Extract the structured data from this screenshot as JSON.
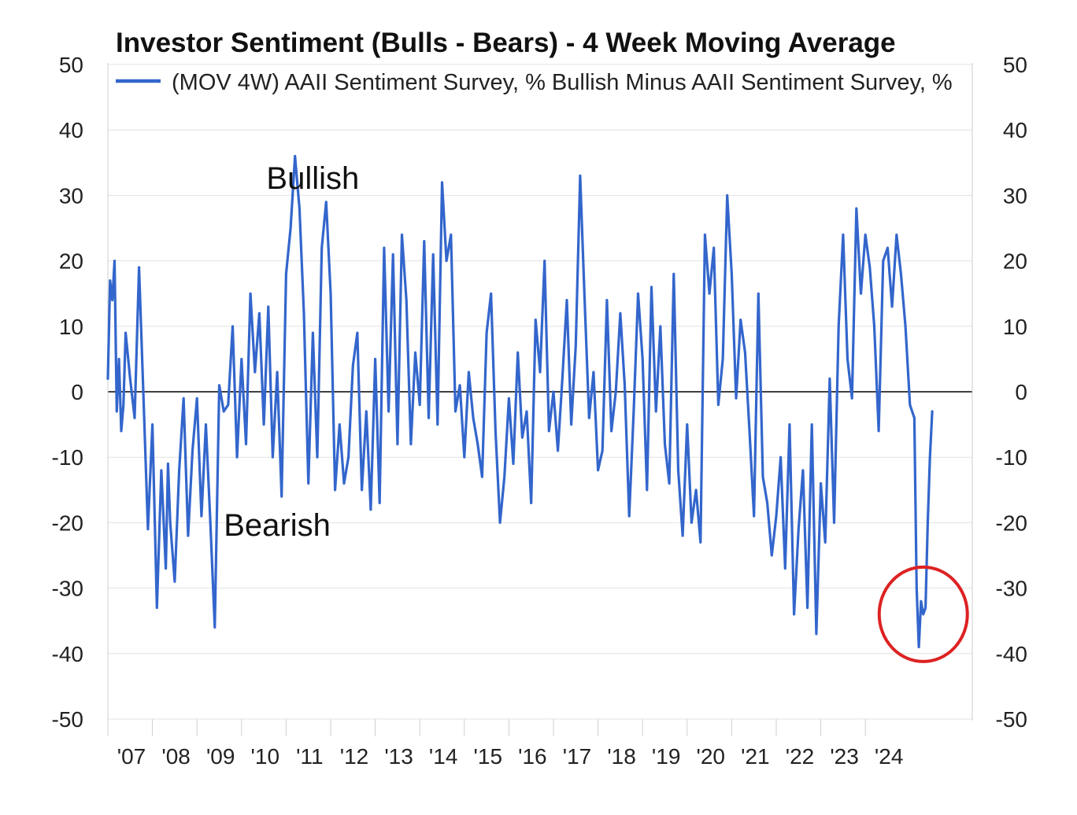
{
  "chart_data": {
    "type": "line",
    "title": "Investor Sentiment (Bulls - Bears) - 4 Week Moving Average",
    "legend": "(MOV 4W) AAII Sentiment Survey, % Bullish Minus AAII Sentiment Survey, %",
    "series_color": "#3366cc",
    "highlight_color": "#dd2222",
    "ylim": [
      -50,
      50
    ],
    "yticks": [
      50,
      40,
      30,
      20,
      10,
      0,
      -10,
      -20,
      -30,
      -40,
      -50
    ],
    "x_range": [
      2007.0,
      2026.4
    ],
    "xticks": [
      {
        "label": "'07",
        "value": 2007
      },
      {
        "label": "'08",
        "value": 2008
      },
      {
        "label": "'09",
        "value": 2009
      },
      {
        "label": "'10",
        "value": 2010
      },
      {
        "label": "'11",
        "value": 2011
      },
      {
        "label": "'12",
        "value": 2012
      },
      {
        "label": "'13",
        "value": 2013
      },
      {
        "label": "'14",
        "value": 2014
      },
      {
        "label": "'15",
        "value": 2015
      },
      {
        "label": "'16",
        "value": 2016
      },
      {
        "label": "'17",
        "value": 2017
      },
      {
        "label": "'18",
        "value": 2018
      },
      {
        "label": "'19",
        "value": 2019
      },
      {
        "label": "'20",
        "value": 2020
      },
      {
        "label": "'21",
        "value": 2021
      },
      {
        "label": "'22",
        "value": 2022
      },
      {
        "label": "'23",
        "value": 2023
      },
      {
        "label": "'24",
        "value": 2024
      }
    ],
    "annotations": [
      {
        "text": "Bullish",
        "x": 2011.6,
        "y": 31
      },
      {
        "text": "Bearish",
        "x": 2010.8,
        "y": -22
      }
    ],
    "highlight": {
      "x": 2025.3,
      "y": -34
    },
    "x": [
      2007.0,
      2007.05,
      2007.1,
      2007.15,
      2007.2,
      2007.25,
      2007.3,
      2007.35,
      2007.4,
      2007.5,
      2007.6,
      2007.7,
      2007.8,
      2007.9,
      2008.0,
      2008.1,
      2008.2,
      2008.3,
      2008.35,
      2008.4,
      2008.5,
      2008.6,
      2008.7,
      2008.8,
      2008.9,
      2009.0,
      2009.1,
      2009.2,
      2009.3,
      2009.4,
      2009.5,
      2009.6,
      2009.7,
      2009.8,
      2009.9,
      2010.0,
      2010.1,
      2010.2,
      2010.3,
      2010.4,
      2010.5,
      2010.6,
      2010.7,
      2010.8,
      2010.9,
      2011.0,
      2011.1,
      2011.2,
      2011.3,
      2011.4,
      2011.5,
      2011.6,
      2011.7,
      2011.8,
      2011.9,
      2012.0,
      2012.1,
      2012.2,
      2012.3,
      2012.4,
      2012.5,
      2012.6,
      2012.7,
      2012.8,
      2012.9,
      2013.0,
      2013.1,
      2013.2,
      2013.3,
      2013.4,
      2013.5,
      2013.6,
      2013.7,
      2013.8,
      2013.9,
      2014.0,
      2014.1,
      2014.2,
      2014.3,
      2014.4,
      2014.5,
      2014.6,
      2014.7,
      2014.8,
      2014.9,
      2015.0,
      2015.1,
      2015.2,
      2015.3,
      2015.4,
      2015.5,
      2015.6,
      2015.7,
      2015.8,
      2015.9,
      2016.0,
      2016.1,
      2016.2,
      2016.3,
      2016.4,
      2016.5,
      2016.6,
      2016.7,
      2016.8,
      2016.9,
      2017.0,
      2017.1,
      2017.2,
      2017.3,
      2017.4,
      2017.5,
      2017.6,
      2017.7,
      2017.8,
      2017.9,
      2018.0,
      2018.1,
      2018.2,
      2018.3,
      2018.4,
      2018.5,
      2018.6,
      2018.7,
      2018.8,
      2018.9,
      2019.0,
      2019.1,
      2019.2,
      2019.3,
      2019.4,
      2019.5,
      2019.6,
      2019.7,
      2019.8,
      2019.9,
      2020.0,
      2020.1,
      2020.2,
      2020.3,
      2020.4,
      2020.5,
      2020.6,
      2020.7,
      2020.8,
      2020.9,
      2021.0,
      2021.1,
      2021.2,
      2021.3,
      2021.4,
      2021.5,
      2021.6,
      2021.7,
      2021.8,
      2021.9,
      2022.0,
      2022.1,
      2022.2,
      2022.3,
      2022.4,
      2022.5,
      2022.6,
      2022.7,
      2022.8,
      2022.9,
      2023.0,
      2023.1,
      2023.2,
      2023.3,
      2023.4,
      2023.5,
      2023.6,
      2023.7,
      2023.8,
      2023.9,
      2024.0,
      2024.1,
      2024.2,
      2024.3,
      2024.4,
      2024.5,
      2024.6,
      2024.7,
      2024.8,
      2024.9,
      2025.0,
      2025.1,
      2025.15,
      2025.2,
      2025.25,
      2025.3,
      2025.35,
      2025.4,
      2025.45,
      2025.5
    ],
    "values": [
      2,
      17,
      14,
      20,
      -3,
      5,
      -6,
      -2,
      9,
      2,
      -4,
      19,
      -1,
      -21,
      -5,
      -33,
      -12,
      -27,
      -11,
      -20,
      -29,
      -12,
      -1,
      -22,
      -9,
      -1,
      -19,
      -5,
      -20,
      -36,
      1,
      -3,
      -2,
      10,
      -10,
      5,
      -8,
      15,
      3,
      12,
      -5,
      13,
      -10,
      3,
      -16,
      18,
      25,
      36,
      28,
      12,
      -14,
      9,
      -10,
      22,
      29,
      15,
      -15,
      -5,
      -14,
      -10,
      4,
      9,
      -15,
      -3,
      -18,
      5,
      -17,
      22,
      -3,
      21,
      -8,
      24,
      14,
      -8,
      6,
      -2,
      23,
      -4,
      21,
      -5,
      32,
      20,
      24,
      -3,
      1,
      -10,
      3,
      -4,
      -8,
      -13,
      9,
      15,
      -6,
      -20,
      -13,
      -1,
      -11,
      6,
      -7,
      -3,
      -17,
      11,
      3,
      20,
      -6,
      0,
      -9,
      2,
      14,
      -5,
      7,
      33,
      14,
      -4,
      3,
      -12,
      -9,
      14,
      -6,
      0,
      12,
      1,
      -19,
      -3,
      15,
      5,
      -15,
      16,
      -3,
      10,
      -8,
      -14,
      18,
      -12,
      -22,
      -5,
      -20,
      -15,
      -23,
      24,
      15,
      22,
      -2,
      5,
      30,
      18,
      -1,
      11,
      6,
      -6,
      -19,
      15,
      -13,
      -17,
      -25,
      -19,
      -10,
      -27,
      -5,
      -34,
      -21,
      -12,
      -33,
      -5,
      -37,
      -14,
      -23,
      2,
      -20,
      10,
      24,
      5,
      -1,
      28,
      15,
      24,
      19,
      10,
      -6,
      20,
      22,
      13,
      24,
      18,
      10,
      -2,
      -4,
      -30,
      -39,
      -32,
      -34,
      -33,
      -20,
      -10,
      -3
    ]
  }
}
